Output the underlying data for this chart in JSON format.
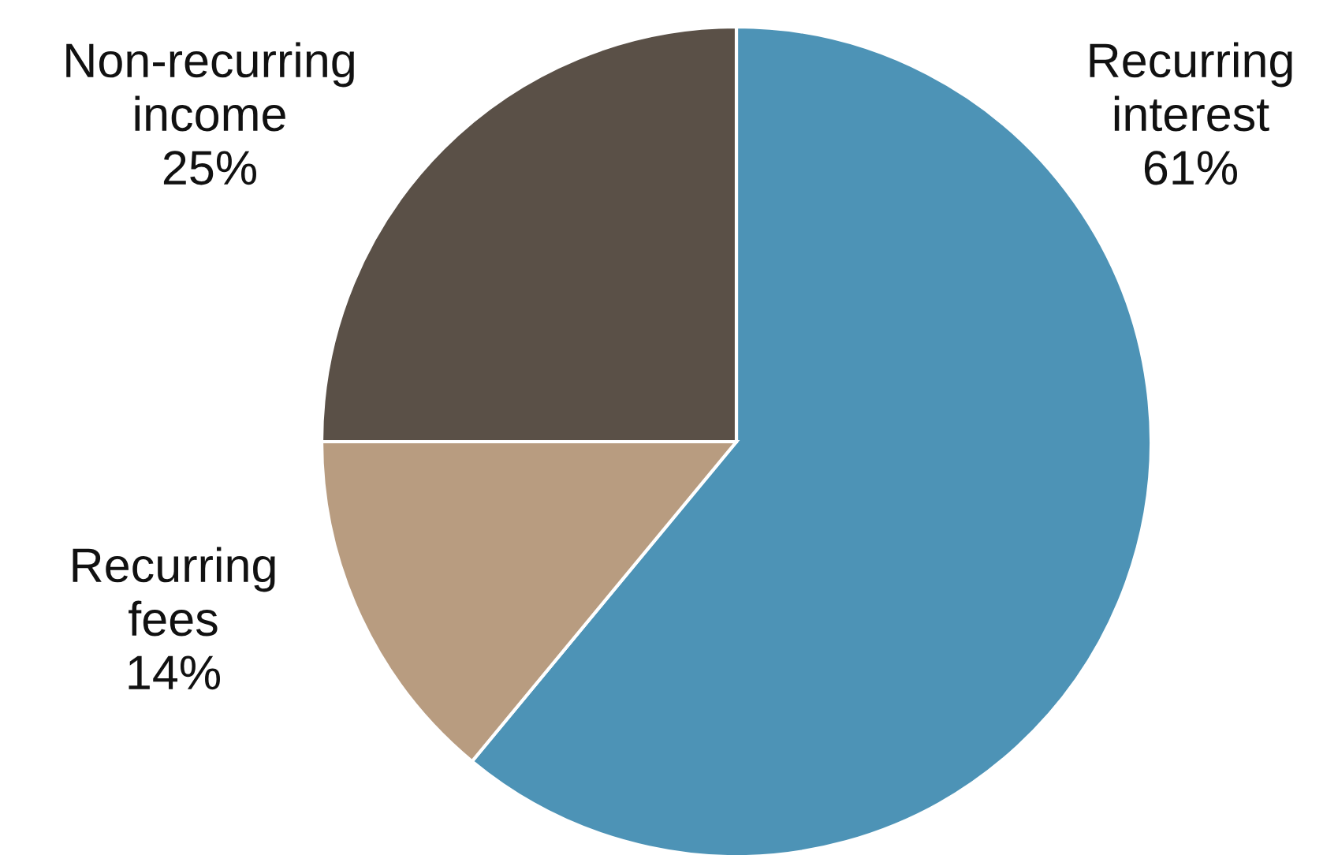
{
  "chart_data": {
    "type": "pie",
    "categories": [
      "Recurring interest",
      "Recurring fees",
      "Non-recurring income"
    ],
    "values": [
      61,
      14,
      25
    ],
    "colors": [
      "#4d93b6",
      "#b89c80",
      "#5a5047"
    ],
    "value_labels": [
      "61%",
      "14%",
      "25%"
    ]
  }
}
